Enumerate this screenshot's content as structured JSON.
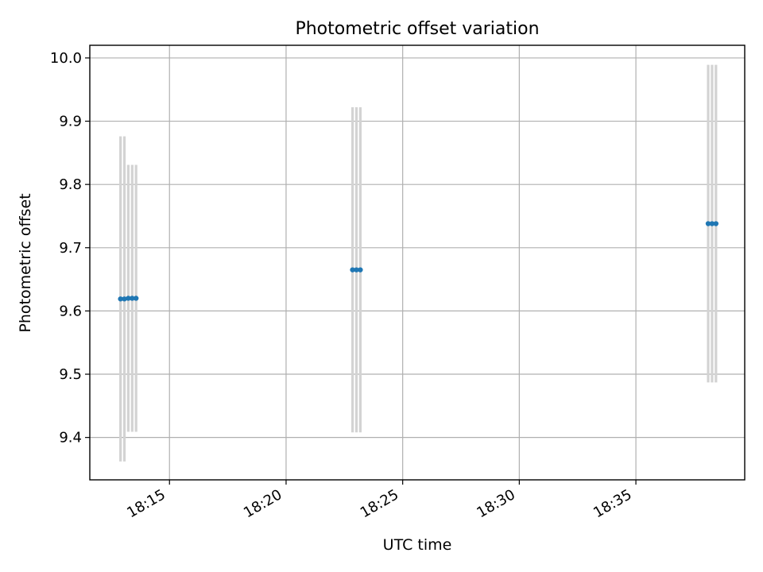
{
  "chart_data": {
    "type": "scatter",
    "title": "Photometric offset variation",
    "xlabel": "UTC time",
    "ylabel": "Photometric offset",
    "x_tick_labels": [
      "18:15",
      "18:20",
      "18:25",
      "18:30",
      "18:35"
    ],
    "y_tick_labels": [
      "9.4",
      "9.5",
      "9.6",
      "9.7",
      "9.8",
      "9.9",
      "10.0"
    ],
    "xlim": [
      "18:11:35",
      "18:39:40"
    ],
    "ylim": [
      9.333,
      10.02
    ],
    "x_ticks": [
      "18:15:00",
      "18:20:00",
      "18:25:00",
      "18:30:00",
      "18:35:00"
    ],
    "y_ticks": [
      9.4,
      9.5,
      9.6,
      9.7,
      9.8,
      9.9,
      10.0
    ],
    "grid": true,
    "colors": {
      "marker": "#1f77b4",
      "errorbar": "#d3d3d3",
      "grid": "#b0b0b0"
    },
    "series": [
      {
        "points": [
          {
            "t": "18:12:54",
            "y": 9.619,
            "err": 0.257
          },
          {
            "t": "18:13:04",
            "y": 9.619,
            "err": 0.257
          },
          {
            "t": "18:13:14",
            "y": 9.62,
            "err": 0.211
          },
          {
            "t": "18:13:24",
            "y": 9.62,
            "err": 0.211
          },
          {
            "t": "18:13:34",
            "y": 9.62,
            "err": 0.211
          },
          {
            "t": "18:22:51",
            "y": 9.665,
            "err": 0.257
          },
          {
            "t": "18:23:01",
            "y": 9.665,
            "err": 0.257
          },
          {
            "t": "18:23:11",
            "y": 9.665,
            "err": 0.257
          },
          {
            "t": "18:38:06",
            "y": 9.738,
            "err": 0.251
          },
          {
            "t": "18:38:16",
            "y": 9.738,
            "err": 0.251
          },
          {
            "t": "18:38:26",
            "y": 9.738,
            "err": 0.251
          }
        ]
      }
    ]
  }
}
